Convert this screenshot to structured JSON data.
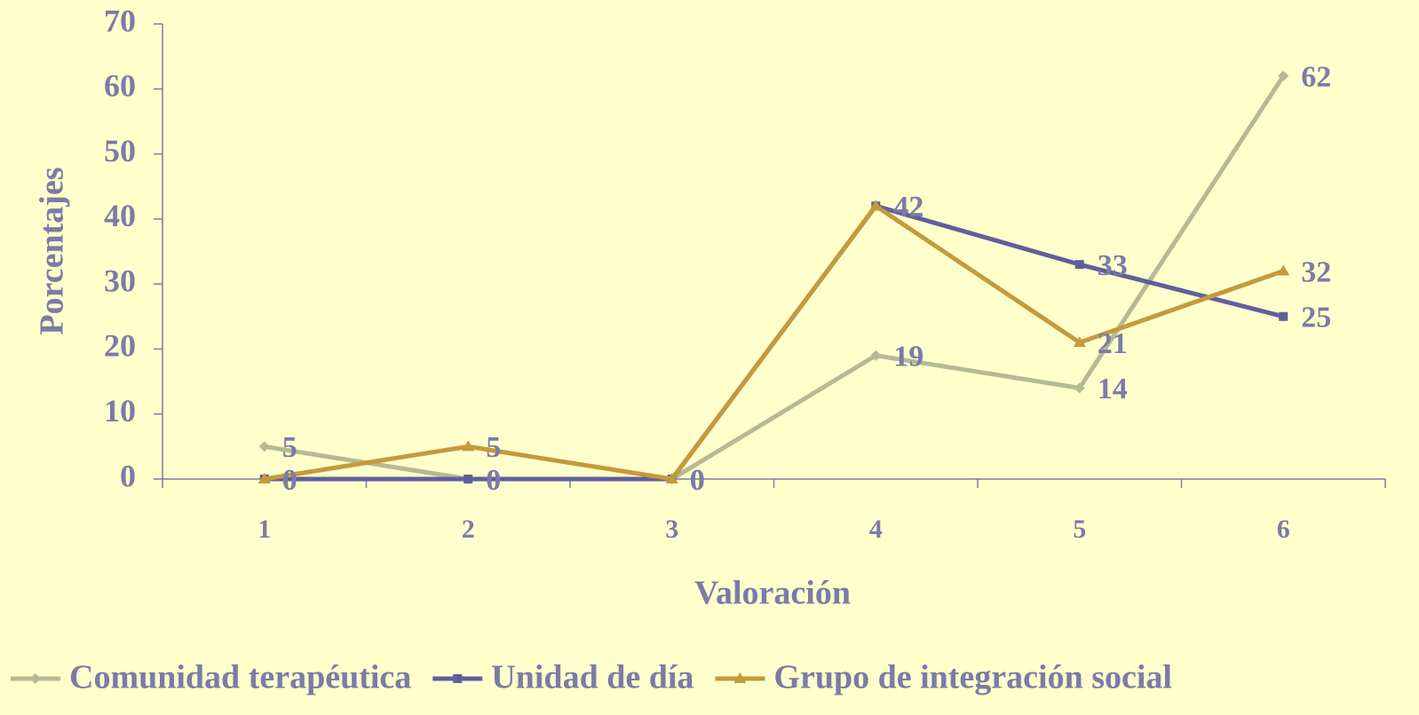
{
  "chart_data": {
    "type": "line",
    "x_label": "Valoración",
    "y_label": "Porcentajes",
    "categories": [
      "1",
      "2",
      "3",
      "4",
      "5",
      "6"
    ],
    "series": [
      {
        "name": "Comunidad terapéutica",
        "color": "#b4ba94",
        "marker": "diamond",
        "values": [
          5,
          0,
          0,
          19,
          14,
          62
        ]
      },
      {
        "name": "Unidad de día",
        "color": "#5f5f9c",
        "marker": "square",
        "values": [
          0,
          0,
          0,
          42,
          33,
          25
        ]
      },
      {
        "name": "Grupo de integración social",
        "color": "#c49a3c",
        "marker": "triangle",
        "values": [
          0,
          5,
          0,
          42,
          21,
          32
        ]
      }
    ],
    "ylim": [
      0,
      70
    ],
    "yticks": [
      0,
      10,
      20,
      30,
      40,
      50,
      60,
      70
    ],
    "grid": false,
    "legend": "bottom"
  }
}
